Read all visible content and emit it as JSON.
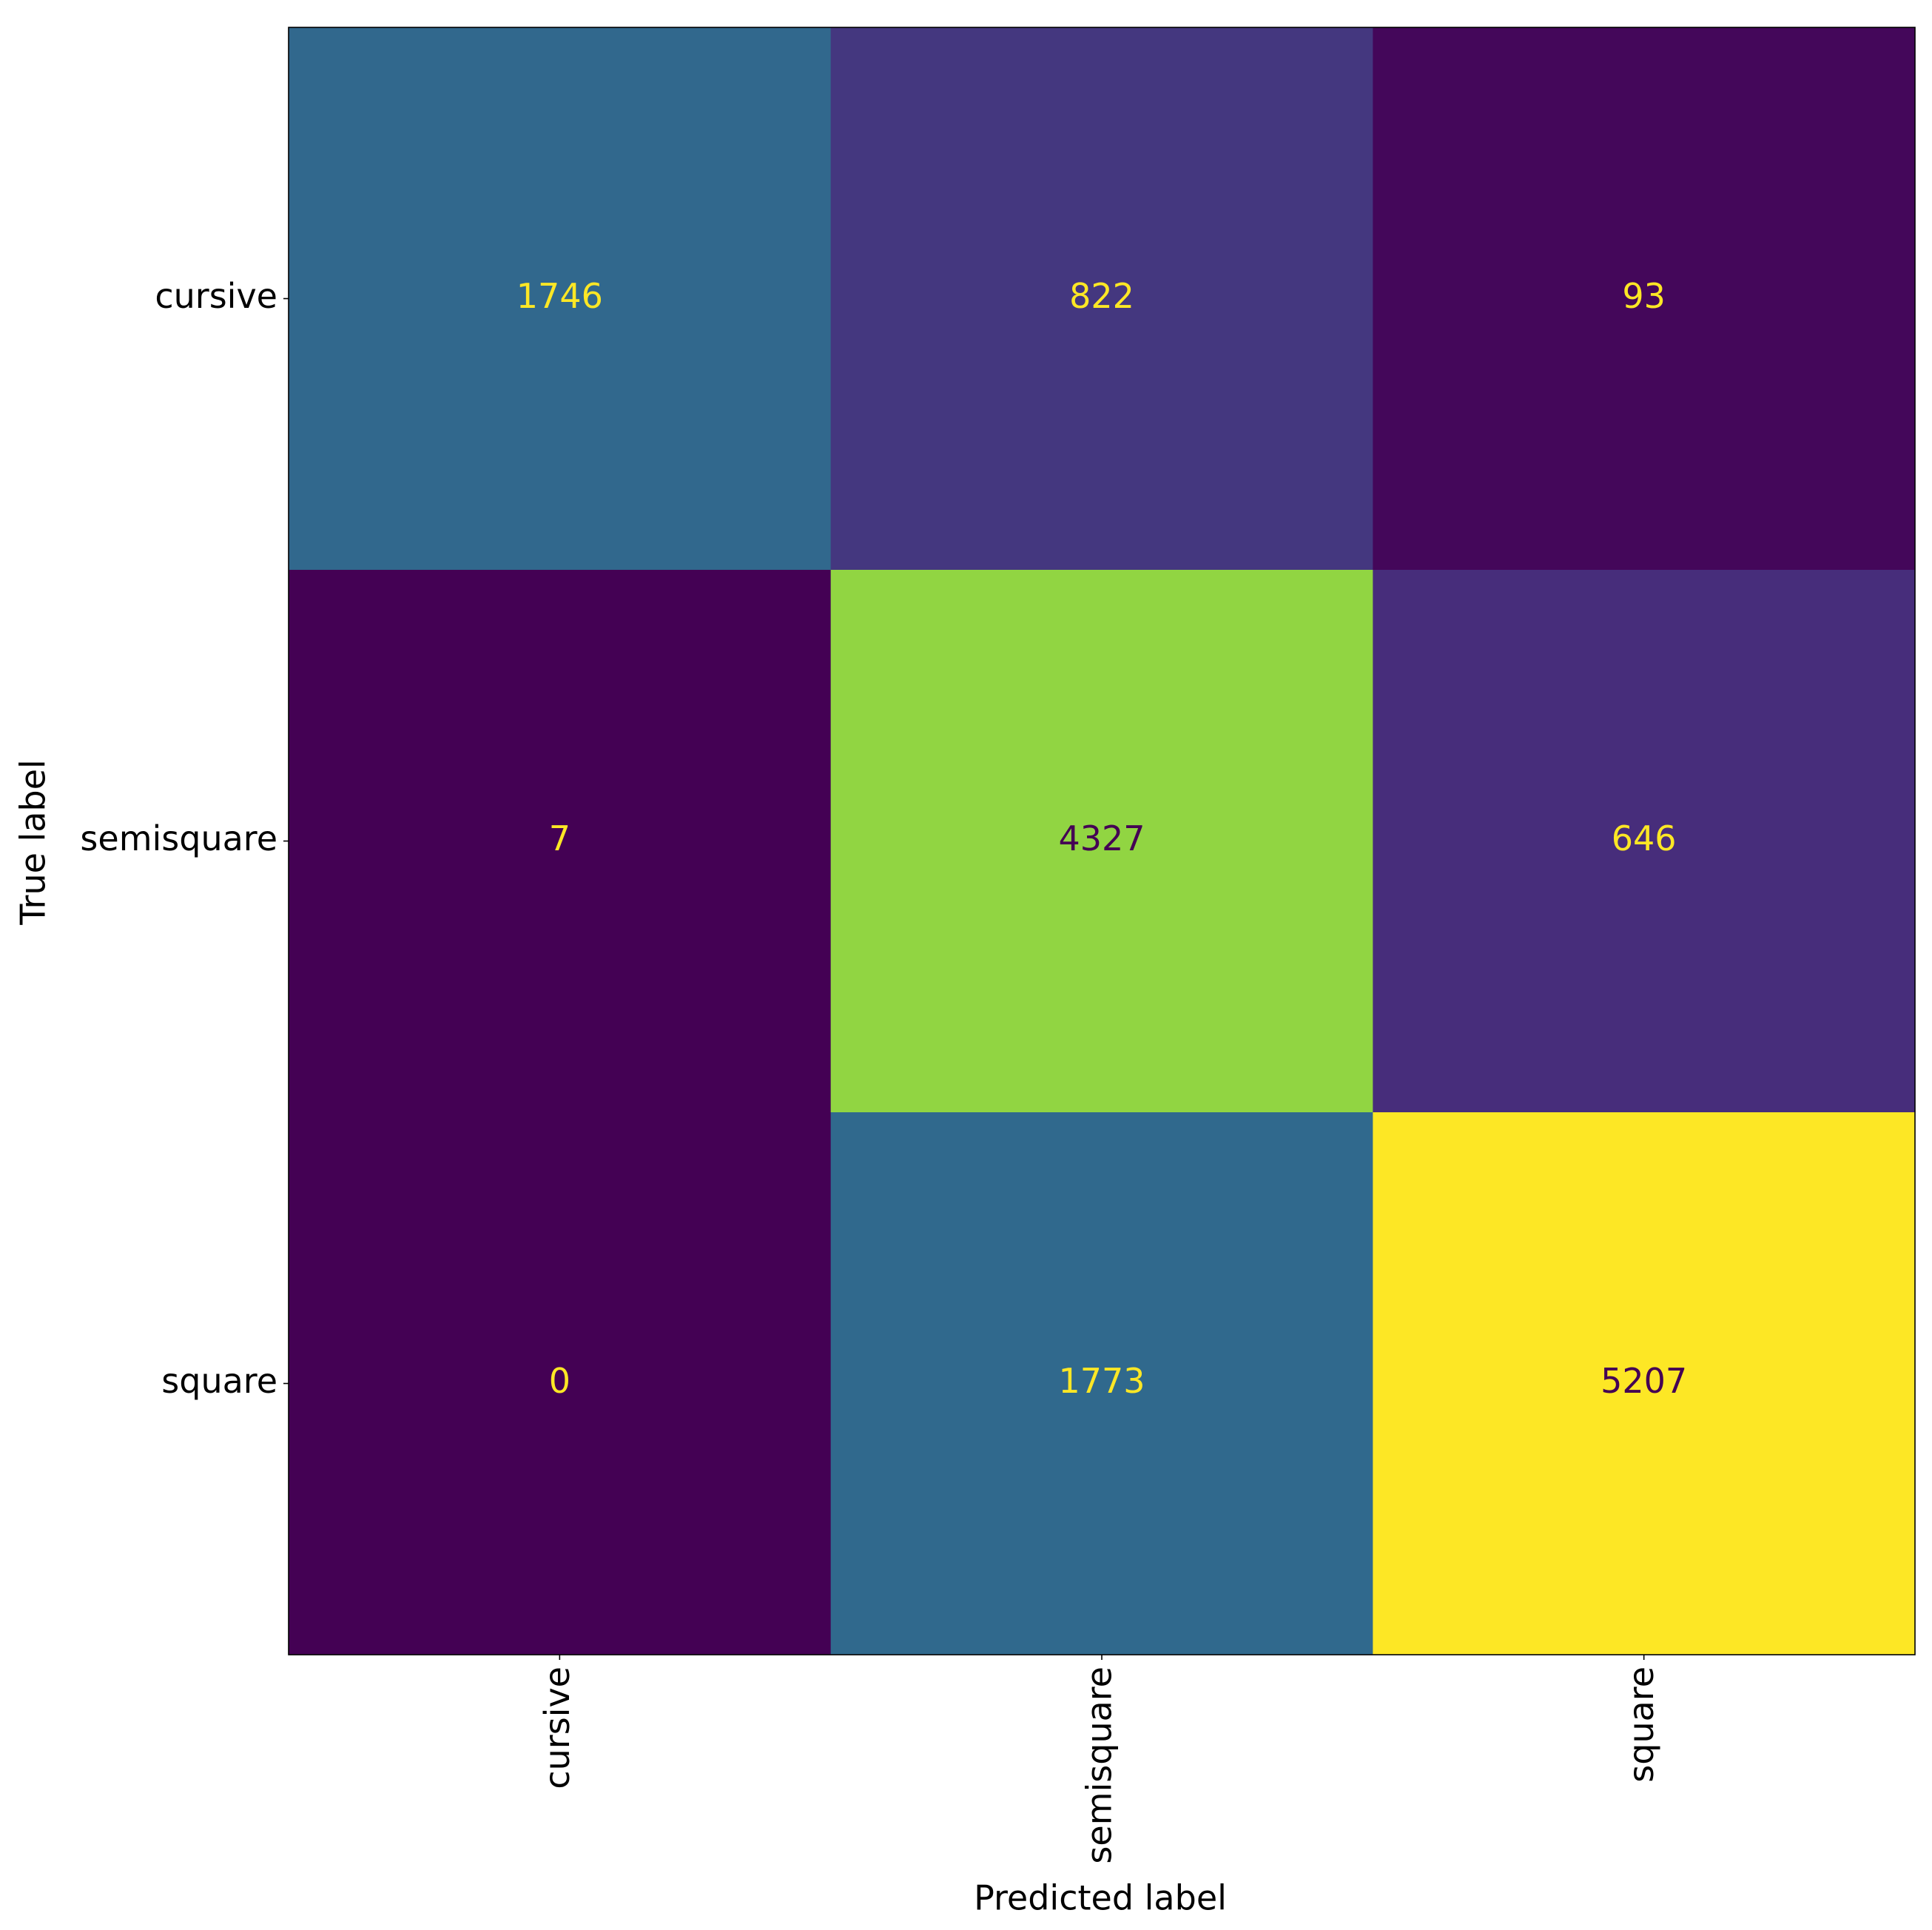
{
  "chart_data": {
    "type": "heatmap",
    "x_label": "Predicted label",
    "y_label": "True label",
    "x_categories": [
      "cursive",
      "semisquare",
      "square"
    ],
    "y_categories": [
      "cursive",
      "semisquare",
      "square"
    ],
    "values": [
      [
        1746,
        822,
        93
      ],
      [
        7,
        4327,
        646
      ],
      [
        0,
        1773,
        5207
      ]
    ],
    "colormap": "viridis"
  }
}
